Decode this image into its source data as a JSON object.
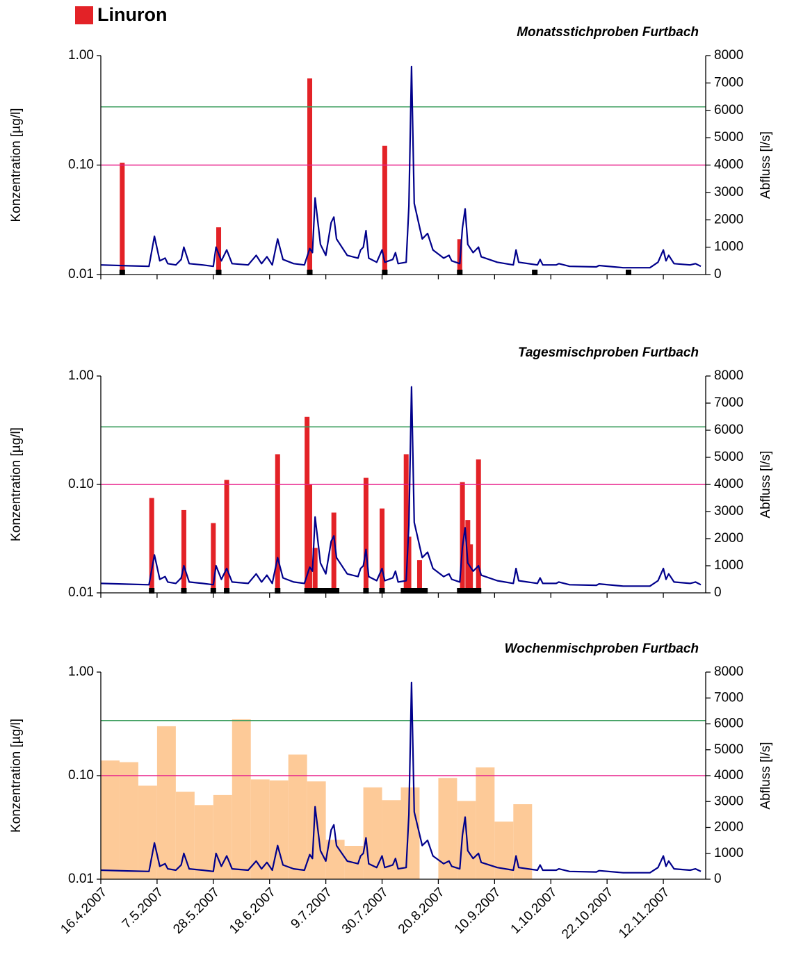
{
  "legend": {
    "label": "Linuron",
    "color": "#e32227"
  },
  "chart_data": [
    {
      "type": "bar",
      "log_y": true,
      "title": "Monatsstichproben Furtbach",
      "ylabel": "Konzentration [µg/l]",
      "y2label": "Abfluss [l/s]",
      "xlim": [
        "2007-04-16",
        "2007-11-26"
      ],
      "xticks": [
        "2007-04-16",
        "2007-05-07",
        "2007-05-28",
        "2007-06-18",
        "2007-07-09",
        "2007-07-30",
        "2007-08-20",
        "2007-09-10",
        "2007-10-01",
        "2007-10-22",
        "2007-11-12"
      ],
      "ylim": [
        0.01,
        1
      ],
      "yticks": [
        {
          "value": 0.01,
          "label": "0.01"
        },
        {
          "value": 0.1,
          "label": "0.10"
        },
        {
          "value": 1,
          "label": "1.00"
        }
      ],
      "y2lim": [
        0,
        8000
      ],
      "y2ticks": [
        0,
        1000,
        2000,
        3000,
        4000,
        5000,
        6000,
        7000,
        8000
      ],
      "reference_lines": [
        {
          "value": 0.34,
          "color": "#3c9e5e"
        },
        {
          "value": 0.1,
          "color": "#e8208c"
        }
      ],
      "series": [
        {
          "type": "bar",
          "color": "#e32227",
          "x": [
            "2007-04-24",
            "2007-05-30",
            "2007-07-03",
            "2007-07-31",
            "2007-08-28"
          ],
          "values": [
            0.105,
            0.027,
            0.62,
            0.15,
            0.021
          ]
        },
        {
          "type": "sample",
          "color": "#000000",
          "x": [
            "2007-04-24",
            "2007-05-30",
            "2007-07-03",
            "2007-07-31",
            "2007-08-28",
            "2007-09-25",
            "2007-10-30"
          ]
        },
        {
          "type": "line",
          "axis": "y2",
          "color": "#00008b",
          "x": [
            "2007-04-16",
            "2007-04-26",
            "2007-05-04",
            "2007-05-06",
            "2007-05-08",
            "2007-05-10",
            "2007-05-11",
            "2007-05-14",
            "2007-05-16",
            "2007-05-17",
            "2007-05-19",
            "2007-05-24",
            "2007-05-28",
            "2007-05-29",
            "2007-05-31",
            "2007-06-02",
            "2007-06-04",
            "2007-06-10",
            "2007-06-13",
            "2007-06-15",
            "2007-06-17",
            "2007-06-19",
            "2007-06-21",
            "2007-06-23",
            "2007-06-27",
            "2007-07-01",
            "2007-07-03",
            "2007-07-04",
            "2007-07-05",
            "2007-07-07",
            "2007-07-09",
            "2007-07-11",
            "2007-07-12",
            "2007-07-13",
            "2007-07-17",
            "2007-07-21",
            "2007-07-22",
            "2007-07-23",
            "2007-07-24",
            "2007-07-25",
            "2007-07-28",
            "2007-07-30",
            "2007-07-31",
            "2007-08-03",
            "2007-08-04",
            "2007-08-05",
            "2007-08-08",
            "2007-08-09",
            "2007-08-10",
            "2007-08-11",
            "2007-08-14",
            "2007-08-16",
            "2007-08-18",
            "2007-08-22",
            "2007-08-24",
            "2007-08-25",
            "2007-08-28",
            "2007-08-29",
            "2007-08-30",
            "2007-08-31",
            "2007-09-02",
            "2007-09-04",
            "2007-09-05",
            "2007-09-11",
            "2007-09-17",
            "2007-09-18",
            "2007-09-19",
            "2007-09-26",
            "2007-09-27",
            "2007-09-28",
            "2007-10-03",
            "2007-10-04",
            "2007-10-08",
            "2007-10-18",
            "2007-10-19",
            "2007-10-28",
            "2007-11-07",
            "2007-11-10",
            "2007-11-12",
            "2007-11-13",
            "2007-11-14",
            "2007-11-16",
            "2007-11-22",
            "2007-11-24",
            "2007-11-26"
          ],
          "values": [
            350,
            320,
            300,
            1400,
            500,
            600,
            400,
            350,
            550,
            1000,
            400,
            350,
            300,
            1000,
            500,
            900,
            400,
            350,
            700,
            400,
            650,
            350,
            1300,
            550,
            400,
            350,
            950,
            800,
            2800,
            1100,
            700,
            1900,
            2100,
            1300,
            700,
            600,
            900,
            1000,
            1600,
            600,
            450,
            900,
            450,
            550,
            800,
            400,
            450,
            2500,
            7600,
            2600,
            1300,
            1500,
            900,
            600,
            700,
            500,
            400,
            1700,
            2400,
            1100,
            800,
            1000,
            650,
            450,
            350,
            900,
            450,
            350,
            550,
            350,
            350,
            400,
            300,
            280,
            330,
            250,
            250,
            450,
            900,
            500,
            700,
            400,
            350,
            400,
            300
          ]
        }
      ]
    },
    {
      "type": "bar",
      "log_y": true,
      "title": "Tagesmischproben Furtbach",
      "ylabel": "Konzentration [µg/l]",
      "y2label": "Abfluss [l/s]",
      "xlim": [
        "2007-04-16",
        "2007-11-26"
      ],
      "xticks": [
        "2007-04-16",
        "2007-05-07",
        "2007-05-28",
        "2007-06-18",
        "2007-07-09",
        "2007-07-30",
        "2007-08-20",
        "2007-09-10",
        "2007-10-01",
        "2007-10-22",
        "2007-11-12"
      ],
      "ylim": [
        0.01,
        1
      ],
      "yticks": [
        {
          "value": 0.01,
          "label": "0.01"
        },
        {
          "value": 0.1,
          "label": "0.10"
        },
        {
          "value": 1,
          "label": "1.00"
        }
      ],
      "y2lim": [
        0,
        8000
      ],
      "y2ticks": [
        0,
        1000,
        2000,
        3000,
        4000,
        5000,
        6000,
        7000,
        8000
      ],
      "reference_lines": [
        {
          "value": 0.34,
          "color": "#3c9e5e"
        },
        {
          "value": 0.1,
          "color": "#e8208c"
        }
      ],
      "series": [
        {
          "type": "bar",
          "color": "#e32227",
          "x": [
            "2007-05-05",
            "2007-05-17",
            "2007-05-28",
            "2007-06-02",
            "2007-06-21",
            "2007-07-02",
            "2007-07-03",
            "2007-07-05",
            "2007-07-12",
            "2007-07-24",
            "2007-07-30",
            "2007-08-08",
            "2007-08-09",
            "2007-08-13",
            "2007-08-29",
            "2007-08-31",
            "2007-09-01",
            "2007-09-04"
          ],
          "values": [
            0.075,
            0.058,
            0.044,
            0.11,
            0.19,
            0.42,
            0.1,
            0.026,
            0.055,
            0.115,
            0.06,
            0.19,
            0.033,
            0.02,
            0.105,
            0.047,
            0.028,
            0.17
          ]
        },
        {
          "type": "sample",
          "color": "#000000",
          "x": [
            "2007-05-05",
            "2007-05-17",
            "2007-05-28",
            "2007-06-02",
            "2007-06-21",
            "2007-07-02",
            "2007-07-03",
            "2007-07-04",
            "2007-07-05",
            "2007-07-06",
            "2007-07-07",
            "2007-07-09",
            "2007-07-10",
            "2007-07-11",
            "2007-07-12",
            "2007-07-13",
            "2007-07-24",
            "2007-07-30",
            "2007-08-07",
            "2007-08-08",
            "2007-08-09",
            "2007-08-10",
            "2007-08-11",
            "2007-08-12",
            "2007-08-13",
            "2007-08-14",
            "2007-08-15",
            "2007-08-28",
            "2007-08-29",
            "2007-08-30",
            "2007-08-31",
            "2007-09-01",
            "2007-09-02",
            "2007-09-04"
          ]
        },
        {
          "type": "line",
          "axis": "y2",
          "color": "#00008b",
          "x": [
            "2007-04-16",
            "2007-04-26",
            "2007-05-04",
            "2007-05-06",
            "2007-05-08",
            "2007-05-10",
            "2007-05-11",
            "2007-05-14",
            "2007-05-16",
            "2007-05-17",
            "2007-05-19",
            "2007-05-24",
            "2007-05-28",
            "2007-05-29",
            "2007-05-31",
            "2007-06-02",
            "2007-06-04",
            "2007-06-10",
            "2007-06-13",
            "2007-06-15",
            "2007-06-17",
            "2007-06-19",
            "2007-06-21",
            "2007-06-23",
            "2007-06-27",
            "2007-07-01",
            "2007-07-03",
            "2007-07-04",
            "2007-07-05",
            "2007-07-07",
            "2007-07-09",
            "2007-07-11",
            "2007-07-12",
            "2007-07-13",
            "2007-07-17",
            "2007-07-21",
            "2007-07-22",
            "2007-07-23",
            "2007-07-24",
            "2007-07-25",
            "2007-07-28",
            "2007-07-30",
            "2007-07-31",
            "2007-08-03",
            "2007-08-04",
            "2007-08-05",
            "2007-08-08",
            "2007-08-09",
            "2007-08-10",
            "2007-08-11",
            "2007-08-14",
            "2007-08-16",
            "2007-08-18",
            "2007-08-22",
            "2007-08-24",
            "2007-08-25",
            "2007-08-28",
            "2007-08-29",
            "2007-08-30",
            "2007-08-31",
            "2007-09-02",
            "2007-09-04",
            "2007-09-05",
            "2007-09-11",
            "2007-09-17",
            "2007-09-18",
            "2007-09-19",
            "2007-09-26",
            "2007-09-27",
            "2007-09-28",
            "2007-10-03",
            "2007-10-04",
            "2007-10-08",
            "2007-10-18",
            "2007-10-19",
            "2007-10-28",
            "2007-11-07",
            "2007-11-10",
            "2007-11-12",
            "2007-11-13",
            "2007-11-14",
            "2007-11-16",
            "2007-11-22",
            "2007-11-24",
            "2007-11-26"
          ],
          "values": [
            350,
            320,
            300,
            1400,
            500,
            600,
            400,
            350,
            550,
            1000,
            400,
            350,
            300,
            1000,
            500,
            900,
            400,
            350,
            700,
            400,
            650,
            350,
            1300,
            550,
            400,
            350,
            950,
            800,
            2800,
            1100,
            700,
            1900,
            2100,
            1300,
            700,
            600,
            900,
            1000,
            1600,
            600,
            450,
            900,
            450,
            550,
            800,
            400,
            450,
            2500,
            7600,
            2600,
            1300,
            1500,
            900,
            600,
            700,
            500,
            400,
            1700,
            2400,
            1100,
            800,
            1000,
            650,
            450,
            350,
            900,
            450,
            350,
            550,
            350,
            350,
            400,
            300,
            280,
            330,
            250,
            250,
            450,
            900,
            500,
            700,
            400,
            350,
            400,
            300
          ]
        }
      ]
    },
    {
      "type": "bar",
      "log_y": true,
      "title": "Wochenmischproben Furtbach",
      "ylabel": "Konzentration [µg/l]",
      "y2label": "Abfluss [l/s]",
      "xlim": [
        "2007-04-16",
        "2007-11-26"
      ],
      "xticks": [
        {
          "value": "2007-04-16",
          "label": "16.4.2007"
        },
        {
          "value": "2007-05-07",
          "label": "7.5.2007"
        },
        {
          "value": "2007-05-28",
          "label": "28.5.2007"
        },
        {
          "value": "2007-06-18",
          "label": "18.6.2007"
        },
        {
          "value": "2007-07-09",
          "label": "9.7.2007"
        },
        {
          "value": "2007-07-30",
          "label": "30.7.2007"
        },
        {
          "value": "2007-08-20",
          "label": "20.8.2007"
        },
        {
          "value": "2007-09-10",
          "label": "10.9.2007"
        },
        {
          "value": "2007-10-01",
          "label": "1.10.2007"
        },
        {
          "value": "2007-10-22",
          "label": "22.10.2007"
        },
        {
          "value": "2007-11-12",
          "label": "12.11.2007"
        }
      ],
      "ylim": [
        0.01,
        1
      ],
      "yticks": [
        {
          "value": 0.01,
          "label": "0.01"
        },
        {
          "value": 0.1,
          "label": "0.10"
        },
        {
          "value": 1,
          "label": "1.00"
        }
      ],
      "y2lim": [
        0,
        8000
      ],
      "y2ticks": [
        0,
        1000,
        2000,
        3000,
        4000,
        5000,
        6000,
        7000,
        8000
      ],
      "reference_lines": [
        {
          "value": 0.34,
          "color": "#3c9e5e"
        },
        {
          "value": 0.1,
          "color": "#e8208c"
        }
      ],
      "series": [
        {
          "type": "histogram",
          "color": "#fdca98",
          "bins": [
            "2007-04-16",
            "2007-04-23",
            "2007-04-30",
            "2007-05-07",
            "2007-05-14",
            "2007-05-21",
            "2007-05-28",
            "2007-06-04",
            "2007-06-11",
            "2007-06-18",
            "2007-06-25",
            "2007-07-02",
            "2007-07-09",
            "2007-07-16",
            "2007-07-23",
            "2007-07-30",
            "2007-08-06",
            "2007-08-13",
            "2007-08-20",
            "2007-08-27",
            "2007-09-03",
            "2007-09-10",
            "2007-09-17",
            "2007-09-24"
          ],
          "values": [
            0.14,
            0.135,
            0.08,
            0.3,
            0.07,
            0.052,
            0.065,
            0.35,
            0.092,
            0.09,
            0.16,
            0.088,
            0.024,
            0.021,
            0.077,
            0.058,
            0.077,
            null,
            0.095,
            0.057,
            0.12,
            0.036,
            0.053
          ]
        },
        {
          "type": "line",
          "axis": "y2",
          "color": "#00008b",
          "x": [
            "2007-04-16",
            "2007-04-26",
            "2007-05-04",
            "2007-05-06",
            "2007-05-08",
            "2007-05-10",
            "2007-05-11",
            "2007-05-14",
            "2007-05-16",
            "2007-05-17",
            "2007-05-19",
            "2007-05-24",
            "2007-05-28",
            "2007-05-29",
            "2007-05-31",
            "2007-06-02",
            "2007-06-04",
            "2007-06-10",
            "2007-06-13",
            "2007-06-15",
            "2007-06-17",
            "2007-06-19",
            "2007-06-21",
            "2007-06-23",
            "2007-06-27",
            "2007-07-01",
            "2007-07-03",
            "2007-07-04",
            "2007-07-05",
            "2007-07-07",
            "2007-07-09",
            "2007-07-11",
            "2007-07-12",
            "2007-07-13",
            "2007-07-17",
            "2007-07-21",
            "2007-07-22",
            "2007-07-23",
            "2007-07-24",
            "2007-07-25",
            "2007-07-28",
            "2007-07-30",
            "2007-07-31",
            "2007-08-03",
            "2007-08-04",
            "2007-08-05",
            "2007-08-08",
            "2007-08-09",
            "2007-08-10",
            "2007-08-11",
            "2007-08-14",
            "2007-08-16",
            "2007-08-18",
            "2007-08-22",
            "2007-08-24",
            "2007-08-25",
            "2007-08-28",
            "2007-08-29",
            "2007-08-30",
            "2007-08-31",
            "2007-09-02",
            "2007-09-04",
            "2007-09-05",
            "2007-09-11",
            "2007-09-17",
            "2007-09-18",
            "2007-09-19",
            "2007-09-26",
            "2007-09-27",
            "2007-09-28",
            "2007-10-03",
            "2007-10-04",
            "2007-10-08",
            "2007-10-18",
            "2007-10-19",
            "2007-10-28",
            "2007-11-07",
            "2007-11-10",
            "2007-11-12",
            "2007-11-13",
            "2007-11-14",
            "2007-11-16",
            "2007-11-22",
            "2007-11-24",
            "2007-11-26"
          ],
          "values": [
            350,
            320,
            300,
            1400,
            500,
            600,
            400,
            350,
            550,
            1000,
            400,
            350,
            300,
            1000,
            500,
            900,
            400,
            350,
            700,
            400,
            650,
            350,
            1300,
            550,
            400,
            350,
            950,
            800,
            2800,
            1100,
            700,
            1900,
            2100,
            1300,
            700,
            600,
            900,
            1000,
            1600,
            600,
            450,
            900,
            450,
            550,
            800,
            400,
            450,
            2500,
            7600,
            2600,
            1300,
            1500,
            900,
            600,
            700,
            500,
            400,
            1700,
            2400,
            1100,
            800,
            1000,
            650,
            450,
            350,
            900,
            450,
            350,
            550,
            350,
            350,
            400,
            300,
            280,
            330,
            250,
            250,
            450,
            900,
            500,
            700,
            400,
            350,
            400,
            300
          ]
        }
      ]
    }
  ]
}
